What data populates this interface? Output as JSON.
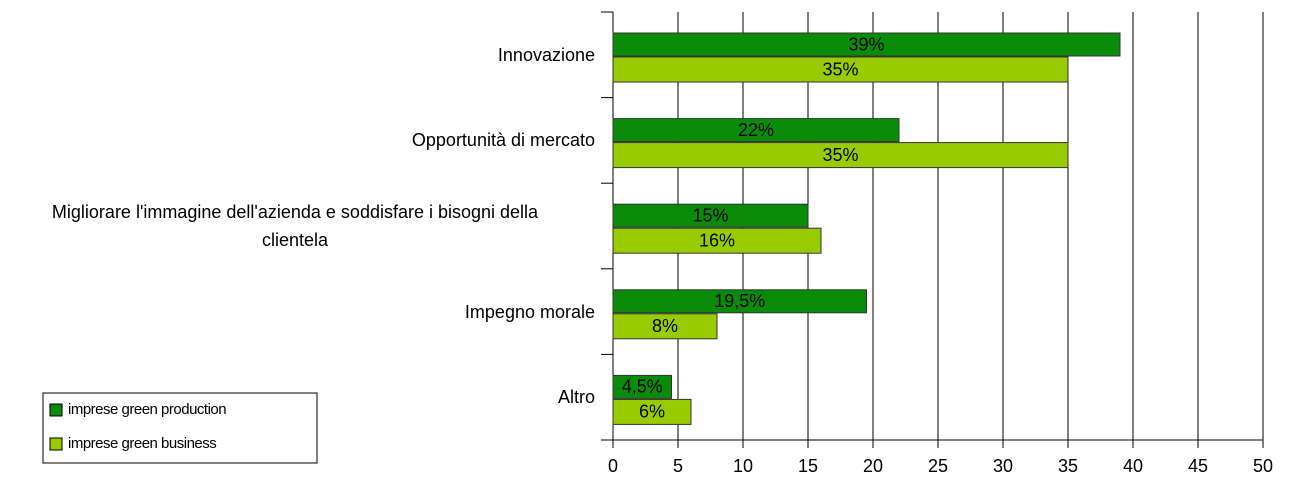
{
  "chart_data": {
    "type": "hbar",
    "categories": [
      "Innovazione",
      "Opportunità di mercato",
      "Migliorare l'immagine dell'azienda e soddisfare i bisogni della clientela",
      "Impegno morale",
      "Altro"
    ],
    "series": [
      {
        "name": "imprese green production",
        "color": "#0a8c0a",
        "values": [
          39,
          22,
          15,
          19.5,
          4.5
        ],
        "value_labels": [
          "39%",
          "22%",
          "15%",
          "19,5%",
          "4,5%"
        ]
      },
      {
        "name": "imprese green business",
        "color": "#99cc00",
        "values": [
          35,
          35,
          16,
          8,
          6
        ],
        "value_labels": [
          "35%",
          "35%",
          "16%",
          "8%",
          "6%"
        ]
      }
    ],
    "xlim": [
      0,
      50
    ],
    "xticks": [
      0,
      5,
      10,
      15,
      20,
      25,
      30,
      35,
      40,
      45,
      50
    ],
    "grid": true,
    "legend": "bottom-left"
  }
}
